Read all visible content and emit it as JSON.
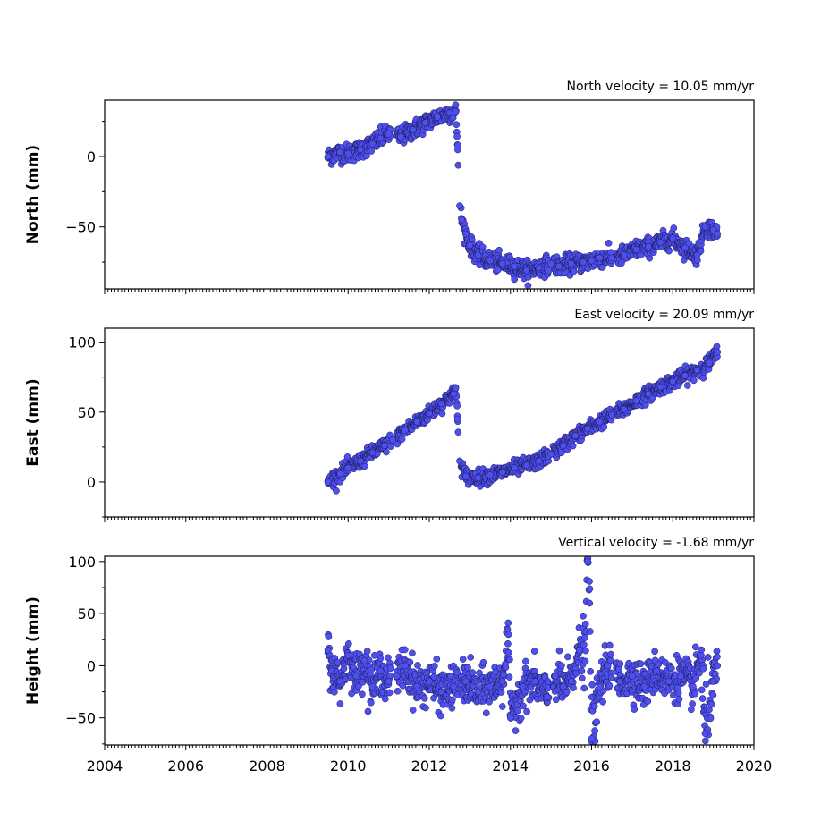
{
  "colors": {
    "marker_fill": "#4f4ff0",
    "marker_edge": "#1a1a55"
  },
  "chart_data": [
    {
      "type": "scatter",
      "title": "North velocity = 10.05 mm/yr",
      "xlabel": "",
      "ylabel": "North (mm)",
      "xlim": [
        2004,
        2020
      ],
      "ylim": [
        -94,
        40
      ],
      "yticks": [
        0,
        -50
      ],
      "ytick_labels": [
        "0",
        "−50"
      ],
      "xticks": [],
      "grid": false,
      "series": [
        {
          "x": [
            2009.5,
            2009.8,
            2010.0,
            2010.3,
            2010.6,
            2010.8,
            2011.0,
            2011.3,
            2011.6,
            2011.9,
            2012.2,
            2012.5,
            2012.65,
            2012.7,
            2012.75,
            2012.8,
            2012.9,
            2013.0,
            2013.2,
            2013.5,
            2013.8,
            2014.1,
            2014.4,
            2014.7,
            2015.0,
            2015.2,
            2015.5,
            2015.8,
            2016.0,
            2016.2,
            2016.5,
            2016.8,
            2017.1,
            2017.4,
            2017.7,
            2018.0,
            2018.3,
            2018.6,
            2018.8,
            2019.0,
            2019.1
          ],
          "y": [
            0,
            3,
            2,
            5,
            9,
            13,
            16,
            14,
            19,
            24,
            28,
            31,
            32,
            8,
            -35,
            -45,
            -55,
            -63,
            -70,
            -74,
            -76,
            -78,
            -81,
            -79,
            -76,
            -78,
            -76,
            -75,
            -74,
            -72,
            -72,
            -70,
            -66,
            -64,
            -61,
            -58,
            -65,
            -70,
            -50,
            -52,
            -55
          ]
        }
      ]
    },
    {
      "type": "scatter",
      "title": "East velocity = 20.09 mm/yr",
      "xlabel": "",
      "ylabel": "East (mm)",
      "xlim": [
        2004,
        2020
      ],
      "ylim": [
        -25,
        110
      ],
      "yticks": [
        100,
        50,
        0
      ],
      "ytick_labels": [
        "100",
        "50",
        "0"
      ],
      "xticks": [],
      "grid": false,
      "series": [
        {
          "x": [
            2009.5,
            2009.8,
            2010.0,
            2010.3,
            2010.6,
            2010.9,
            2011.1,
            2011.4,
            2011.7,
            2012.0,
            2012.3,
            2012.6,
            2012.65,
            2012.7,
            2012.75,
            2012.9,
            2013.2,
            2013.5,
            2013.8,
            2014.1,
            2014.4,
            2014.7,
            2015.0,
            2015.3,
            2015.6,
            2015.9,
            2016.2,
            2016.5,
            2016.8,
            2017.1,
            2017.4,
            2017.7,
            2018.0,
            2018.3,
            2018.6,
            2018.9,
            2019.1
          ],
          "y": [
            0,
            6,
            10,
            15,
            21,
            26,
            30,
            37,
            43,
            49,
            56,
            63,
            67,
            45,
            15,
            4,
            3,
            5,
            7,
            10,
            12,
            15,
            20,
            26,
            33,
            38,
            43,
            48,
            52,
            58,
            63,
            68,
            72,
            76,
            80,
            85,
            93
          ]
        }
      ]
    },
    {
      "type": "scatter",
      "title": "Vertical velocity = -1.68 mm/yr",
      "xlabel": "",
      "ylabel": "Height (mm)",
      "xlim": [
        2004,
        2020
      ],
      "ylim": [
        -76,
        105
      ],
      "yticks": [
        100,
        50,
        0,
        -50
      ],
      "ytick_labels": [
        "100",
        "50",
        "0",
        "−50"
      ],
      "xticks": [
        2004,
        2006,
        2008,
        2010,
        2012,
        2014,
        2016,
        2018,
        2020
      ],
      "xtick_labels": [
        "2004",
        "2006",
        "2008",
        "2010",
        "2012",
        "2014",
        "2016",
        "2018",
        "2020"
      ],
      "grid": false,
      "series": [
        {
          "x": [
            2009.5,
            2009.6,
            2009.8,
            2010.0,
            2010.2,
            2010.4,
            2010.6,
            2010.8,
            2011.0,
            2011.2,
            2011.4,
            2011.7,
            2012.0,
            2012.3,
            2012.6,
            2012.9,
            2013.2,
            2013.5,
            2013.8,
            2013.95,
            2014.0,
            2014.3,
            2014.6,
            2014.9,
            2015.1,
            2015.3,
            2015.5,
            2015.7,
            2015.85,
            2015.9,
            2015.95,
            2016.0,
            2016.2,
            2016.4,
            2016.7,
            2017.0,
            2017.3,
            2017.6,
            2017.9,
            2018.2,
            2018.5,
            2018.7,
            2018.8,
            2019.0,
            2019.1
          ],
          "y": [
            15,
            -5,
            -15,
            10,
            -10,
            5,
            -20,
            -5,
            -15,
            -10,
            0,
            -20,
            -15,
            -25,
            -20,
            -15,
            -25,
            -20,
            -15,
            30,
            -50,
            -20,
            -15,
            -30,
            -10,
            -20,
            -15,
            15,
            40,
            100,
            60,
            -70,
            -20,
            0,
            -15,
            -10,
            -20,
            -5,
            -15,
            -10,
            -20,
            10,
            -65,
            -15,
            0
          ]
        }
      ]
    }
  ]
}
